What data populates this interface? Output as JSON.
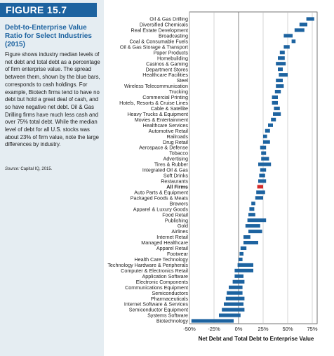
{
  "figure_label": "FIGURE 15.7",
  "sidebar": {
    "title": "Debt-to-Enterprise Value Ratio for Select Industries (2015)",
    "body": "Figure shows industry median levels of net debt and total debt as a percentage of firm enterprise value. The spread between them, shown by the blue bars, corresponds to cash holdings. For example, Biotech firms tend to have no debt but hold a great deal of cash, and so have negative net debt. Oil & Gas Drilling firms have much less cash and over 75% total debt. While the median level of debt for all U.S. stocks was about 23% of firm value, note the large differences by industry.",
    "source_label": "Source:",
    "source_text": "Capital IQ, 2015."
  },
  "colors": {
    "accent": "#1d63a0",
    "bar": "#1d63a0",
    "highlight": "#d42a2a",
    "sidebar_bg": "#e5edf2"
  },
  "chart_data": {
    "type": "bar",
    "orientation": "horizontal",
    "xlabel": "Net Debt and Total Debt to Enterprise Value",
    "xlim": [
      -50,
      80
    ],
    "xticks": [
      -50,
      -25,
      0,
      25,
      50,
      75
    ],
    "xtick_labels": [
      "-50%",
      "-25%",
      "0%",
      "25%",
      "50%",
      "75%"
    ],
    "grid": true,
    "highlight_category": "All Firms",
    "categories": [
      "Oil & Gas Drilling",
      "Diversified Chemicals",
      "Real Estate Development",
      "Broadcasting",
      "Coal & Consumable Fuels",
      "Oil & Gas Storage & Transport",
      "Paper Products",
      "Homebuilding",
      "Casinos & Gaming",
      "Department Stores",
      "Healthcare Facilities",
      "Steel",
      "Wireless Telecommunication",
      "Trucking",
      "Commercial Printing",
      "Hotels, Resorts & Cruise Lines",
      "Cable & Satellite",
      "Heavy Trucks & Equipment",
      "Movies & Entertainment",
      "Healthcare Services",
      "Automotive Retail",
      "Railroads",
      "Drug Retail",
      "Aerospace & Defense",
      "Tobacco",
      "Advertising",
      "Tires & Rubber",
      "Integrated Oil & Gas",
      "Soft Drinks",
      "Restaurants",
      "All Firms",
      "Auto Parts & Equipment",
      "Packaged Foods & Meats",
      "Brewers",
      "Apparel & Luxury Goods",
      "Food Retail",
      "Publishing",
      "Gold",
      "Airlines",
      "Internet Retail",
      "Managed Healthcare",
      "Apparel Retail",
      "Footwear",
      "Health Care Technology",
      "Technology Hardware & Peripherals",
      "Computer & Electronics Retail",
      "Application Software",
      "Electronic Components",
      "Communications Equipment",
      "Semiconductors",
      "Pharmaceuticals",
      "Internet Software & Services",
      "Semiconductor Equipment",
      "Systems Software",
      "Biotechnology"
    ],
    "series": [
      {
        "name": "Net Debt",
        "values": [
          69,
          62,
          57,
          46,
          54,
          46,
          42,
          40,
          38,
          40,
          41,
          38,
          38,
          37,
          34,
          34,
          36,
          35,
          33,
          30,
          27,
          25,
          25,
          22,
          23,
          23,
          20,
          22,
          21,
          20,
          19,
          18,
          17,
          13,
          11,
          10,
          9,
          7,
          10,
          5,
          5,
          2,
          1,
          0,
          -1,
          -4,
          -4,
          -6,
          -10,
          -12,
          -13,
          -15,
          -17,
          -20,
          -48
        ]
      },
      {
        "name": "Total Debt",
        "values": [
          77,
          70,
          67,
          55,
          58,
          52,
          47,
          47,
          48,
          45,
          50,
          45,
          46,
          43,
          40,
          40,
          42,
          43,
          38,
          35,
          32,
          29,
          32,
          28,
          28,
          31,
          33,
          28,
          27,
          28,
          25,
          27,
          25,
          17,
          16,
          17,
          28,
          22,
          24,
          12,
          20,
          8,
          5,
          4,
          15,
          15,
          5,
          6,
          4,
          4,
          6,
          5,
          6,
          2,
          -5
        ]
      }
    ]
  }
}
